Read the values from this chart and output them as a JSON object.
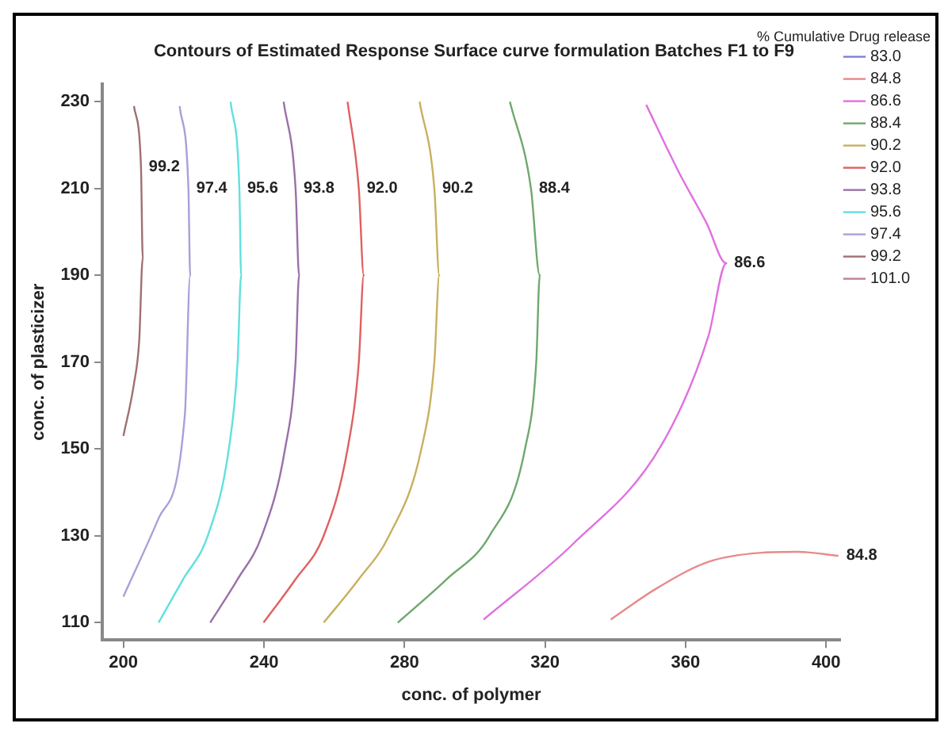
{
  "chart_data": {
    "type": "line",
    "title": "Contours of Estimated Response Surface curve formulation Batches F1 to F9",
    "xlabel": "conc. of polymer",
    "ylabel": "conc. of plasticizer",
    "legend_title": "% Cumulative Drug release",
    "legend": "right",
    "grid": false,
    "xlim": [
      194,
      404
    ],
    "ylim": [
      106,
      234
    ],
    "xticks": [
      200,
      240,
      280,
      320,
      360,
      400
    ],
    "yticks": [
      110,
      130,
      150,
      170,
      190,
      210,
      230
    ],
    "series": [
      {
        "name": "83.0",
        "color": "#7f7fdf"
      },
      {
        "name": "84.8",
        "color": "#e88a8a",
        "x": [
          338.7,
          351.4,
          366.5,
          381.7,
          392,
          403.5
        ],
        "values": [
          110.7,
          117.7,
          124,
          126.1,
          126.3,
          125.4
        ]
      },
      {
        "name": "86.6",
        "color": "#e070e0",
        "x": [
          348.8,
          358,
          366,
          371.6,
          366.5,
          353,
          327.8,
          302.5
        ],
        "values": [
          229.3,
          213.9,
          202,
          192.8,
          176,
          150.7,
          128,
          110.7
        ]
      },
      {
        "name": "88.4",
        "color": "#6fa86f",
        "x": [
          310,
          316,
          318.5,
          317.5,
          314.3,
          304.2,
          292,
          278.1
        ],
        "values": [
          230,
          210,
          190,
          170,
          150,
          130,
          120,
          110
        ]
      },
      {
        "name": "90.2",
        "color": "#c8b060",
        "x": [
          284.3,
          288.5,
          289.9,
          288.5,
          284.8,
          275.6,
          267,
          257
        ],
        "values": [
          230,
          210,
          190,
          170,
          150,
          130,
          120,
          110
        ]
      },
      {
        "name": "92.0",
        "color": "#e06060",
        "x": [
          263.8,
          267,
          268.4,
          267,
          263.8,
          257,
          249,
          239.9
        ],
        "values": [
          230,
          210,
          190,
          170,
          150,
          130,
          120,
          110
        ]
      },
      {
        "name": "93.8",
        "color": "#9a70a8",
        "x": [
          245.6,
          249,
          250,
          249,
          246,
          239.4,
          232.5,
          224.7
        ],
        "values": [
          230,
          210,
          190,
          170,
          150,
          130,
          120,
          110
        ]
      },
      {
        "name": "95.6",
        "color": "#60e0e0",
        "x": [
          230.5,
          233,
          233.5,
          232.5,
          230,
          224,
          217,
          210
        ],
        "values": [
          230,
          210,
          190,
          170,
          150,
          130,
          120,
          110
        ]
      },
      {
        "name": "97.4",
        "color": "#a8a0d8",
        "x": [
          216,
          218.5,
          219,
          217.5,
          210,
          200
        ],
        "values": [
          229,
          210,
          190,
          158,
          134,
          116
        ]
      },
      {
        "name": "99.2",
        "color": "#a07070",
        "x": [
          203,
          205,
          205.5,
          204.5,
          203,
          200
        ],
        "values": [
          229,
          215,
          194,
          175,
          165,
          153
        ]
      },
      {
        "name": "101.0",
        "color": "#c08090"
      }
    ],
    "annotations": [
      {
        "text": "99.2",
        "x": 205,
        "y": 215
      },
      {
        "text": "97.4",
        "x": 218.5,
        "y": 210
      },
      {
        "text": "95.6",
        "x": 233,
        "y": 210
      },
      {
        "text": "93.8",
        "x": 249,
        "y": 210
      },
      {
        "text": "92.0",
        "x": 267,
        "y": 210
      },
      {
        "text": "90.2",
        "x": 288.5,
        "y": 210
      },
      {
        "text": "88.4",
        "x": 316,
        "y": 210
      },
      {
        "text": "86.6",
        "x": 371.6,
        "y": 192.8
      },
      {
        "text": "84.8",
        "x": 403.5,
        "y": 125.4
      }
    ]
  }
}
